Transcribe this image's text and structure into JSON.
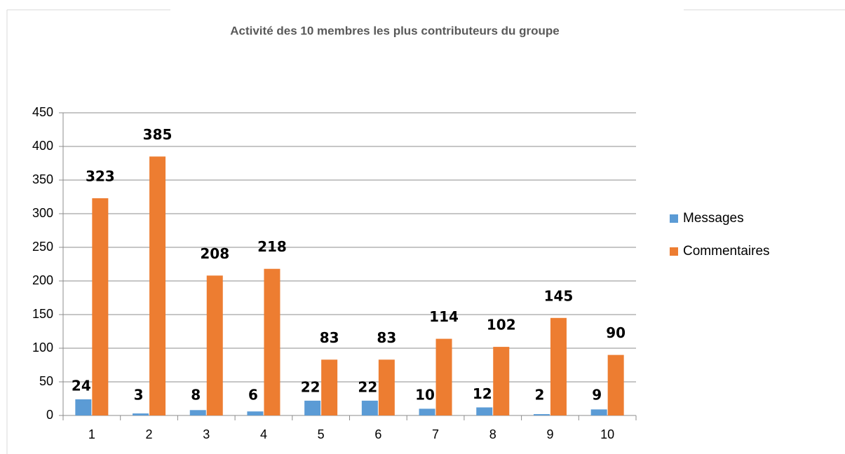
{
  "chart_data": {
    "type": "bar",
    "title": "Activité des 10 membres les plus contributeurs du groupe",
    "categories": [
      "1",
      "2",
      "3",
      "4",
      "5",
      "6",
      "7",
      "8",
      "9",
      "10"
    ],
    "series": [
      {
        "name": "Messages",
        "color": "#5b9bd5",
        "values": [
          24,
          3,
          8,
          6,
          22,
          22,
          10,
          12,
          2,
          9
        ]
      },
      {
        "name": "Commentaires",
        "color": "#ed7d31",
        "values": [
          323,
          385,
          208,
          218,
          83,
          83,
          114,
          102,
          145,
          90
        ]
      }
    ],
    "ylim": [
      0,
      450
    ],
    "yticks": [
      0,
      50,
      100,
      150,
      200,
      250,
      300,
      350,
      400,
      450
    ],
    "grid": true,
    "legend": "right"
  }
}
